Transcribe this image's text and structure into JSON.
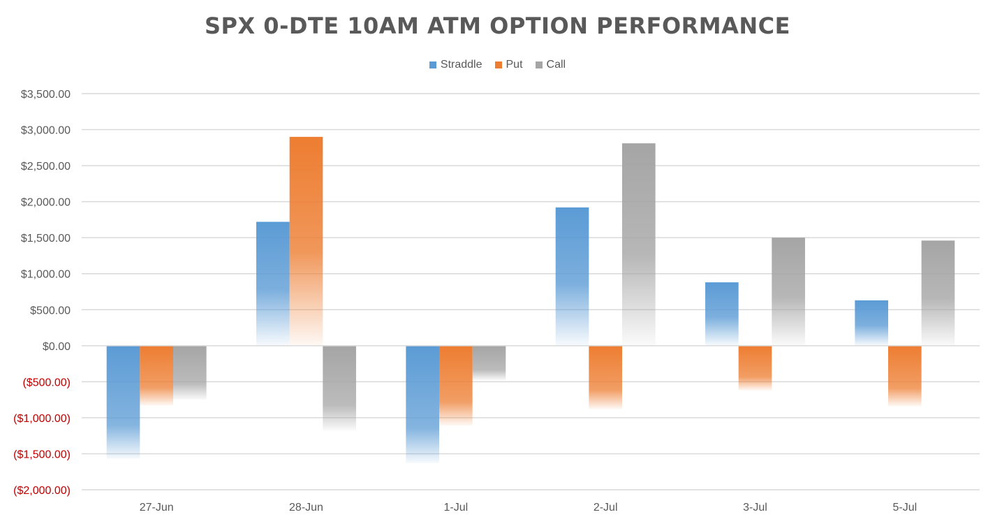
{
  "chart_data": {
    "type": "bar",
    "title": "SPX 0-DTE 10AM ATM OPTION PERFORMANCE",
    "categories": [
      "27-Jun",
      "28-Jun",
      "1-Jul",
      "2-Jul",
      "3-Jul",
      "5-Jul"
    ],
    "series": [
      {
        "name": "Straddle",
        "color": "#5B9BD5",
        "values": [
          -1570,
          1720,
          -1630,
          1920,
          880,
          630
        ]
      },
      {
        "name": "Put",
        "color": "#ED7D31",
        "values": [
          -830,
          2900,
          -1110,
          -880,
          -620,
          -840
        ]
      },
      {
        "name": "Call",
        "color": "#A5A5A5",
        "values": [
          -750,
          -1180,
          -480,
          2810,
          1500,
          1460
        ]
      }
    ],
    "ylim": [
      -2000,
      3500
    ],
    "yticks": [
      {
        "value": 3500,
        "label": "$3,500.00"
      },
      {
        "value": 3000,
        "label": "$3,000.00"
      },
      {
        "value": 2500,
        "label": "$2,500.00"
      },
      {
        "value": 2000,
        "label": "$2,000.00"
      },
      {
        "value": 1500,
        "label": "$1,500.00"
      },
      {
        "value": 1000,
        "label": "$1,000.00"
      },
      {
        "value": 500,
        "label": "$500.00"
      },
      {
        "value": 0,
        "label": "$0.00"
      },
      {
        "value": -500,
        "label": "($500.00)"
      },
      {
        "value": -1000,
        "label": "($1,000.00)"
      },
      {
        "value": -1500,
        "label": "($1,500.00)"
      },
      {
        "value": -2000,
        "label": "($2,000.00)"
      }
    ],
    "negative_label_color": "#C00000",
    "positive_label_color": "#595959",
    "grid": true,
    "legend_position": "top"
  }
}
